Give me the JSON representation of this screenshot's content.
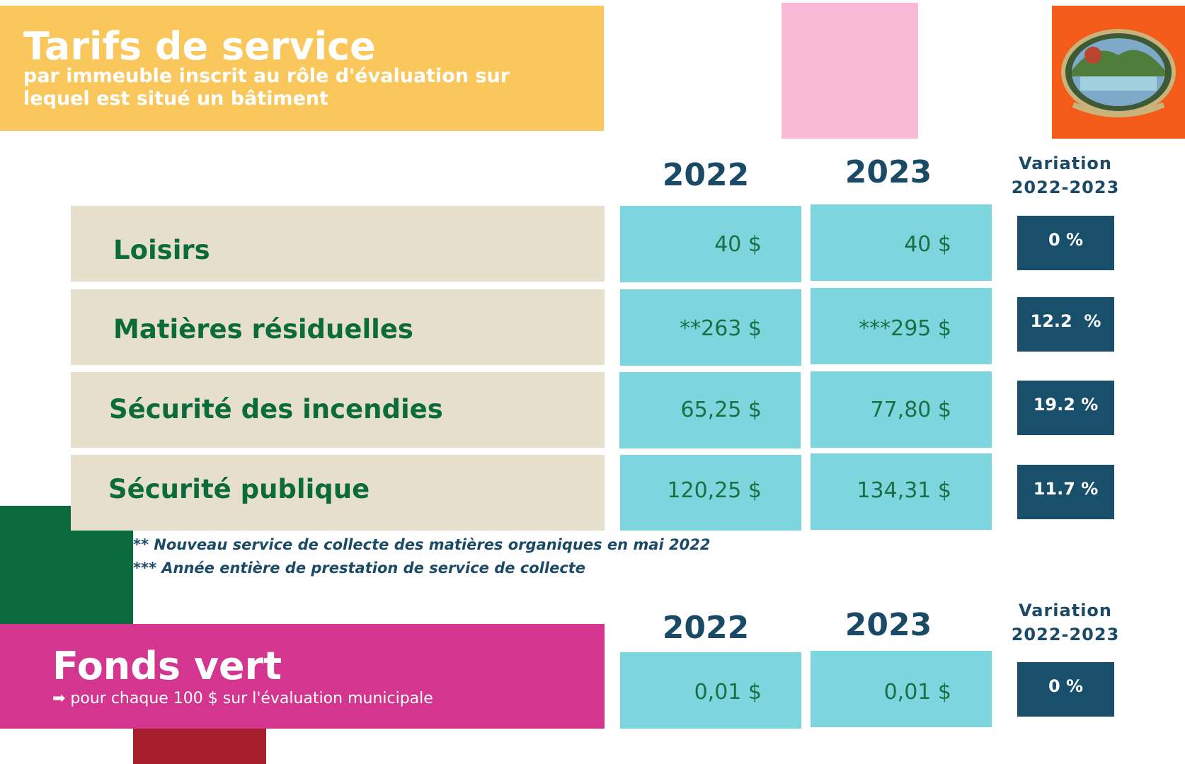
{
  "header": {
    "title": "Tarifs de service",
    "subtitle": "par immeuble inscrit au rôle d'évaluation sur lequel est situé un bâtiment",
    "logo_icon": "municipal-emblem-icon",
    "colors": {
      "header_bg": "#f9c75b",
      "pink_block": "#fbb9d8",
      "logo_bg": "#f45b19"
    }
  },
  "columns": {
    "year_1": "2022",
    "year_2": "2023",
    "variation_line1": "Variation",
    "variation_line2": "2022-2023"
  },
  "rows": [
    {
      "label": "Loisirs",
      "v2022": "40 $",
      "v2023": "40 $",
      "variation": "0 %"
    },
    {
      "label": "Matières résiduelles",
      "v2022": "**263 $",
      "v2023": "***295 $",
      "variation": "12.2  %"
    },
    {
      "label": "Sécurité des incendies",
      "v2022": "65,25 $",
      "v2023": "77,80 $",
      "variation": "19.2 %"
    },
    {
      "label": "Sécurité publique",
      "v2022": "120,25 $",
      "v2023": "134,31 $",
      "variation": "11.7 %"
    }
  ],
  "notes": [
    "** Nouveau service de collecte des matières organiques en mai 2022",
    "*** Année entière de prestation de service de collecte"
  ],
  "fonds_vert": {
    "title": "Fonds vert",
    "subtitle": "➡ pour chaque 100 $ sur l'évaluation municipale",
    "year_1": "2022",
    "year_2": "2023",
    "variation_line1": "Variation",
    "variation_line2": "2022-2023",
    "v2022": "0,01 $",
    "v2023": "0,01 $",
    "variation": "0 %"
  }
}
